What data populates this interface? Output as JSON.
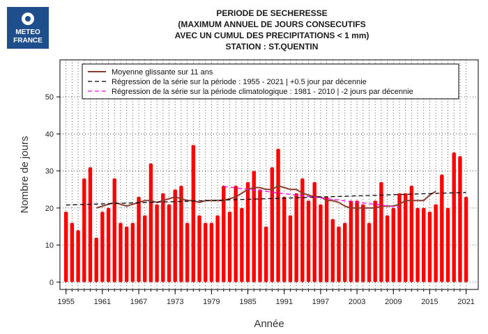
{
  "logo": {
    "line1": "METEO",
    "line2": "FRANCE"
  },
  "chart_data": {
    "type": "bar",
    "title_lines": [
      "PERIODE DE SECHERESSE",
      "(MAXIMUM ANNUEL DE JOURS CONSECUTIFS",
      "AVEC UN CUMUL DES PRECIPITATIONS < 1 mm)",
      "STATION : ST.QUENTIN"
    ],
    "xlabel": "Année",
    "ylabel": "Nombre de jours",
    "xlim": [
      1954,
      2023
    ],
    "ylim": [
      -2,
      60
    ],
    "y_ticks": [
      0,
      10,
      20,
      30,
      40,
      50
    ],
    "x_ticks": [
      1955,
      1961,
      1967,
      1973,
      1979,
      1985,
      1991,
      1997,
      2003,
      2009,
      2015,
      2021
    ],
    "grid": true,
    "legend_position": "top-left",
    "colors": {
      "bars": "#ff0000",
      "moving_average": "#8b3a2e",
      "trend_full": "#000000",
      "trend_clim": "#ff00ff"
    },
    "years": [
      1955,
      1956,
      1957,
      1958,
      1959,
      1960,
      1961,
      1962,
      1963,
      1964,
      1965,
      1966,
      1967,
      1968,
      1969,
      1970,
      1971,
      1972,
      1973,
      1974,
      1975,
      1976,
      1977,
      1978,
      1979,
      1980,
      1981,
      1982,
      1983,
      1984,
      1985,
      1986,
      1987,
      1988,
      1989,
      1990,
      1991,
      1992,
      1993,
      1994,
      1995,
      1996,
      1997,
      1998,
      1999,
      2000,
      2001,
      2002,
      2003,
      2004,
      2005,
      2006,
      2007,
      2008,
      2009,
      2010,
      2011,
      2012,
      2013,
      2014,
      2015,
      2016,
      2017,
      2018,
      2019,
      2020,
      2021
    ],
    "values": [
      19,
      16,
      14,
      28,
      31,
      12,
      19,
      20,
      28,
      16,
      15,
      16,
      23,
      18,
      32,
      21,
      24,
      21,
      25,
      26,
      16,
      37,
      18,
      16,
      16,
      18,
      26,
      19,
      26,
      20,
      27,
      30,
      25,
      15,
      31,
      36,
      23,
      18,
      24,
      28,
      22,
      27,
      21,
      23,
      17,
      15,
      16,
      22,
      22,
      21,
      16,
      22,
      27,
      18,
      20,
      24,
      24,
      26,
      20,
      20,
      19,
      21,
      29,
      20,
      35,
      34,
      23
    ],
    "series": [
      {
        "name": "Moyenne glissante sur 11 ans",
        "style": "solid",
        "x": [
          1960,
          1961,
          1962,
          1963,
          1964,
          1965,
          1966,
          1967,
          1968,
          1969,
          1970,
          1971,
          1972,
          1973,
          1974,
          1975,
          1976,
          1977,
          1978,
          1979,
          1980,
          1981,
          1982,
          1983,
          1984,
          1985,
          1986,
          1987,
          1988,
          1989,
          1990,
          1991,
          1992,
          1993,
          1994,
          1995,
          1996,
          1997,
          1998,
          1999,
          2000,
          2001,
          2002,
          2003,
          2004,
          2005,
          2006,
          2007,
          2008,
          2009,
          2010,
          2011,
          2012,
          2013,
          2014,
          2015,
          2016
        ],
        "y": [
          20,
          20.5,
          21,
          21.5,
          21,
          20.5,
          21,
          21.5,
          22,
          22,
          21.5,
          22,
          22.5,
          23,
          22.5,
          22,
          22,
          21.5,
          22,
          22,
          22,
          22,
          22.5,
          23,
          24,
          25,
          25.5,
          25.5,
          25,
          25,
          26,
          25.5,
          25,
          25,
          24,
          23.5,
          23,
          23,
          22,
          22,
          21.5,
          20.5,
          20,
          20,
          20,
          20,
          20,
          20.5,
          20.5,
          20.5,
          21,
          22,
          22,
          22,
          22,
          23.5,
          24.5
        ]
      },
      {
        "name": "Régression de la série sur la période : 1955 - 2021 | +0.5 jour par décennie",
        "style": "dashed",
        "x": [
          1955,
          2021
        ],
        "y": [
          20.8,
          24.2
        ]
      },
      {
        "name": "Régression de la série sur la période climatologique : 1981 - 2010 | -2 jours par décennie",
        "style": "dashed",
        "x": [
          1981,
          2010
        ],
        "y": [
          25.8,
          20.2
        ]
      }
    ]
  }
}
